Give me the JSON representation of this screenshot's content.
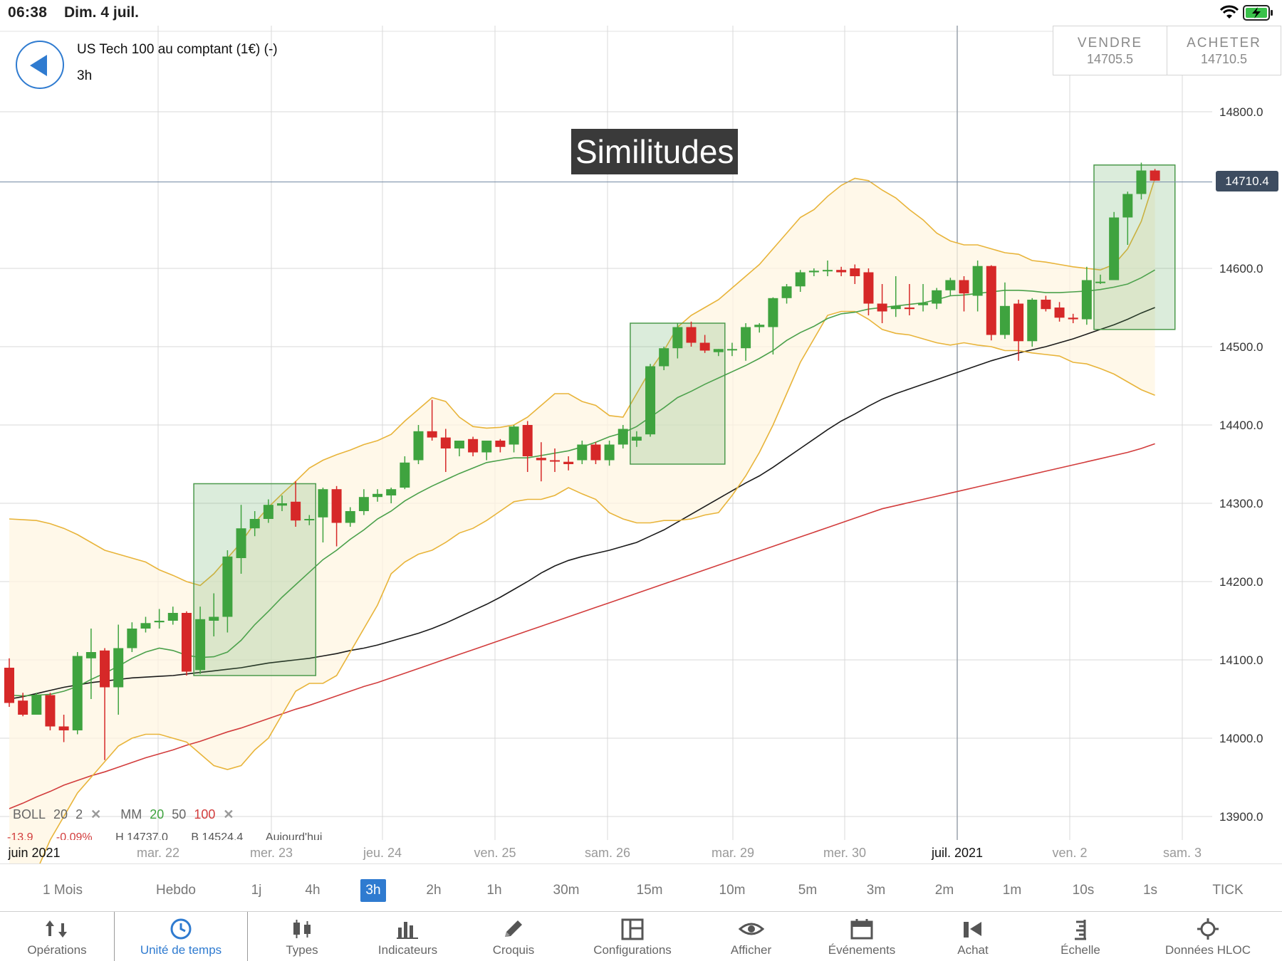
{
  "status_bar": {
    "time": "06:38",
    "date": "Dim. 4 juil.",
    "icons": [
      "wifi-icon",
      "battery-charging-icon"
    ]
  },
  "header": {
    "instrument": "US Tech 100 au comptant (1€) (-)",
    "timeframe": "3h",
    "sell": {
      "label": "VENDRE",
      "price": "14705.5"
    },
    "buy": {
      "label": "ACHETER",
      "price": "14710.5"
    }
  },
  "annotation": {
    "text": "Similitudes"
  },
  "current_price": "14710.4",
  "indicators": {
    "boll": {
      "name": "BOLL",
      "period": "20",
      "dev": "2"
    },
    "mm": {
      "name": "MM",
      "p1": "20",
      "p2": "50",
      "p3": "100"
    },
    "values": [
      "-13.9",
      "-0.09%",
      "H 14737.0",
      "B 14524.4",
      "Aujourd'hui"
    ]
  },
  "timeframes": [
    {
      "label": "1 Mois",
      "active": false
    },
    {
      "label": "Hebdo",
      "active": false
    },
    {
      "label": "1j",
      "active": false
    },
    {
      "label": "4h",
      "active": false
    },
    {
      "label": "3h",
      "active": true
    },
    {
      "label": "2h",
      "active": false
    },
    {
      "label": "1h",
      "active": false
    },
    {
      "label": "30m",
      "active": false
    },
    {
      "label": "15m",
      "active": false
    },
    {
      "label": "10m",
      "active": false
    },
    {
      "label": "5m",
      "active": false
    },
    {
      "label": "3m",
      "active": false
    },
    {
      "label": "2m",
      "active": false
    },
    {
      "label": "1m",
      "active": false
    },
    {
      "label": "10s",
      "active": false
    },
    {
      "label": "1s",
      "active": false
    },
    {
      "label": "TICK",
      "active": false
    }
  ],
  "toolbar": [
    {
      "label": "Opérations",
      "icon": "sort-arrows-icon",
      "active": false
    },
    {
      "label": "Unité de temps",
      "icon": "clock-icon",
      "active": true
    },
    {
      "label": "Types",
      "icon": "candlestick-icon",
      "active": false
    },
    {
      "label": "Indicateurs",
      "icon": "bar-chart-icon",
      "active": false
    },
    {
      "label": "Croquis",
      "icon": "pencil-icon",
      "active": false
    },
    {
      "label": "Configurations",
      "icon": "layout-icon",
      "active": false
    },
    {
      "label": "Afficher",
      "icon": "eye-icon",
      "active": false
    },
    {
      "label": "Événements",
      "icon": "calendar-icon",
      "active": false
    },
    {
      "label": "Achat",
      "icon": "buy-megaphone-icon",
      "active": false
    },
    {
      "label": "Échelle",
      "icon": "ruler-icon",
      "active": false
    },
    {
      "label": "Données HLOC",
      "icon": "crosshair-icon",
      "active": false
    }
  ],
  "colors": {
    "accent": "#2f7bd0",
    "bull": "#3fa33f",
    "bear": "#d62828",
    "bollinger": "#e8b43a",
    "ma20": "#4aa04a",
    "ma50": "#1a1a1a",
    "ma100": "#d23c3c"
  },
  "chart_data": {
    "type": "candlestick",
    "y_ticks": [
      "14800.0",
      "14600.0",
      "14500.0",
      "14400.0",
      "14300.0",
      "14200.0",
      "14100.0",
      "14000.0",
      "13900.0"
    ],
    "x_ticks": [
      "juin 2021",
      "mar. 22",
      "mer. 23",
      "jeu. 24",
      "ven. 25",
      "sam. 26",
      "mar. 29",
      "mer. 30",
      "juil. 2021",
      "ven. 2",
      "sam. 3"
    ],
    "x_ticks_bold": [
      "juin 2021",
      "juil. 2021"
    ],
    "candles": [
      [
        14090,
        14102,
        14040,
        14045
      ],
      [
        14048,
        14058,
        14028,
        14030
      ],
      [
        14030,
        14058,
        14030,
        14055
      ],
      [
        14055,
        14058,
        14010,
        14015
      ],
      [
        14015,
        14030,
        13995,
        14010
      ],
      [
        14010,
        14110,
        14005,
        14105
      ],
      [
        14102,
        14140,
        14050,
        14110
      ],
      [
        14112,
        14115,
        13972,
        14065
      ],
      [
        14065,
        14145,
        14030,
        14115
      ],
      [
        14115,
        14148,
        14110,
        14140
      ],
      [
        14140,
        14155,
        14135,
        14147
      ],
      [
        14148,
        14165,
        14140,
        14150
      ],
      [
        14150,
        14168,
        14145,
        14160
      ],
      [
        14160,
        14162,
        14080,
        14085
      ],
      [
        14087,
        14168,
        14082,
        14152
      ],
      [
        14150,
        14185,
        14130,
        14155
      ],
      [
        14155,
        14240,
        14135,
        14232
      ],
      [
        14230,
        14298,
        14210,
        14268
      ],
      [
        14268,
        14290,
        14258,
        14280
      ],
      [
        14280,
        14305,
        14275,
        14298
      ],
      [
        14297,
        14310,
        14290,
        14300
      ],
      [
        14302,
        14328,
        14270,
        14278
      ],
      [
        14280,
        14285,
        14272,
        14280
      ],
      [
        14282,
        14320,
        14250,
        14318
      ],
      [
        14318,
        14322,
        14245,
        14275
      ],
      [
        14275,
        14295,
        14270,
        14290
      ],
      [
        14290,
        14318,
        14285,
        14308
      ],
      [
        14308,
        14318,
        14302,
        14312
      ],
      [
        14310,
        14320,
        14300,
        14318
      ],
      [
        14320,
        14360,
        14318,
        14352
      ],
      [
        14355,
        14400,
        14350,
        14392
      ],
      [
        14392,
        14432,
        14380,
        14384
      ],
      [
        14384,
        14395,
        14340,
        14370
      ],
      [
        14370,
        14380,
        14360,
        14380
      ],
      [
        14382,
        14385,
        14360,
        14365
      ],
      [
        14365,
        14380,
        14355,
        14380
      ],
      [
        14380,
        14382,
        14365,
        14372
      ],
      [
        14375,
        14400,
        14365,
        14398
      ],
      [
        14400,
        14405,
        14340,
        14360
      ],
      [
        14358,
        14378,
        14328,
        14355
      ],
      [
        14355,
        14370,
        14340,
        14354
      ],
      [
        14353,
        14360,
        14342,
        14350
      ],
      [
        14355,
        14380,
        14350,
        14375
      ],
      [
        14375,
        14378,
        14350,
        14355
      ],
      [
        14355,
        14380,
        14348,
        14375
      ],
      [
        14375,
        14400,
        14370,
        14395
      ],
      [
        14380,
        14392,
        14372,
        14385
      ],
      [
        14388,
        14478,
        14385,
        14475
      ],
      [
        14475,
        14500,
        14470,
        14498
      ],
      [
        14498,
        14530,
        14485,
        14525
      ],
      [
        14525,
        14532,
        14500,
        14505
      ],
      [
        14505,
        14515,
        14492,
        14495
      ],
      [
        14493,
        14497,
        14488,
        14497
      ],
      [
        14497,
        14505,
        14488,
        14497
      ],
      [
        14498,
        14530,
        14482,
        14525
      ],
      [
        14525,
        14530,
        14518,
        14528
      ],
      [
        14525,
        14563,
        14490,
        14562
      ],
      [
        14562,
        14580,
        14555,
        14577
      ],
      [
        14577,
        14598,
        14570,
        14595
      ],
      [
        14595,
        14600,
        14590,
        14597
      ],
      [
        14597,
        14610,
        14590,
        14598
      ],
      [
        14598,
        14602,
        14590,
        14595
      ],
      [
        14600,
        14605,
        14580,
        14590
      ],
      [
        14595,
        14600,
        14540,
        14555
      ],
      [
        14555,
        14580,
        14530,
        14545
      ],
      [
        14548,
        14590,
        14538,
        14552
      ],
      [
        14550,
        14580,
        14540,
        14548
      ],
      [
        14553,
        14580,
        14545,
        14556
      ],
      [
        14555,
        14575,
        14548,
        14572
      ],
      [
        14572,
        14588,
        14565,
        14585
      ],
      [
        14585,
        14590,
        14545,
        14568
      ],
      [
        14565,
        14610,
        14545,
        14603
      ],
      [
        14603,
        14604,
        14508,
        14515
      ],
      [
        14515,
        14582,
        14510,
        14552
      ],
      [
        14555,
        14560,
        14482,
        14507
      ],
      [
        14507,
        14562,
        14500,
        14560
      ],
      [
        14560,
        14565,
        14545,
        14548
      ],
      [
        14550,
        14557,
        14532,
        14537
      ],
      [
        14537,
        14542,
        14530,
        14535
      ],
      [
        14535,
        14602,
        14528,
        14585
      ],
      [
        14583,
        14592,
        14580,
        14583
      ],
      [
        14585,
        14672,
        14585,
        14665
      ],
      [
        14665,
        14698,
        14630,
        14695
      ],
      [
        14695,
        14735,
        14688,
        14725
      ],
      [
        14725,
        14727,
        14712,
        14712
      ]
    ],
    "ma20": [
      14055,
      14054,
      14055,
      14056,
      14060,
      14066,
      14075,
      14083,
      14092,
      14102,
      14110,
      14115,
      14112,
      14106,
      14103,
      14104,
      14110,
      14125,
      14145,
      14162,
      14180,
      14196,
      14212,
      14228,
      14240,
      14254,
      14266,
      14280,
      14290,
      14303,
      14313,
      14322,
      14330,
      14338,
      14345,
      14352,
      14355,
      14358,
      14358,
      14361,
      14364,
      14367,
      14372,
      14378,
      14385,
      14390,
      14398,
      14410,
      14422,
      14435,
      14443,
      14452,
      14460,
      14468,
      14476,
      14485,
      14495,
      14508,
      14518,
      14526,
      14536,
      14542,
      14544,
      14548,
      14550,
      14552,
      14554,
      14556,
      14560,
      14565,
      14566,
      14568,
      14570,
      14572,
      14572,
      14571,
      14569,
      14569,
      14570,
      14571,
      14573,
      14576,
      14580,
      14588,
      14598
    ],
    "boll_upper": [
      14280,
      14279,
      14278,
      14274,
      14268,
      14260,
      14250,
      14240,
      14235,
      14230,
      14225,
      14215,
      14208,
      14200,
      14195,
      14210,
      14230,
      14250,
      14275,
      14295,
      14312,
      14328,
      14345,
      14355,
      14362,
      14368,
      14375,
      14380,
      14388,
      14405,
      14420,
      14435,
      14430,
      14410,
      14398,
      14396,
      14397,
      14400,
      14410,
      14425,
      14440,
      14440,
      14430,
      14425,
      14412,
      14410,
      14440,
      14470,
      14495,
      14525,
      14540,
      14550,
      14560,
      14575,
      14590,
      14605,
      14625,
      14645,
      14665,
      14675,
      14692,
      14706,
      14715,
      14712,
      14700,
      14690,
      14675,
      14662,
      14645,
      14635,
      14630,
      14630,
      14625,
      14620,
      14618,
      14610,
      14608,
      14605,
      14602,
      14600,
      14598,
      14605,
      14625,
      14660,
      14715
    ],
    "boll_lower": [
      13790,
      13800,
      13830,
      13870,
      13900,
      13930,
      13950,
      13970,
      13990,
      14000,
      14005,
      14005,
      14000,
      13995,
      13980,
      13965,
      13960,
      13965,
      13985,
      14000,
      14030,
      14060,
      14070,
      14070,
      14080,
      14110,
      14140,
      14170,
      14210,
      14225,
      14235,
      14240,
      14250,
      14262,
      14268,
      14278,
      14290,
      14302,
      14305,
      14305,
      14310,
      14320,
      14312,
      14305,
      14288,
      14280,
      14275,
      14275,
      14278,
      14278,
      14280,
      14285,
      14288,
      14310,
      14335,
      14365,
      14400,
      14440,
      14480,
      14510,
      14540,
      14545,
      14545,
      14535,
      14522,
      14517,
      14515,
      14510,
      14505,
      14502,
      14505,
      14502,
      14500,
      14495,
      14495,
      14492,
      14490,
      14488,
      14480,
      14478,
      14472,
      14465,
      14455,
      14445,
      14438
    ],
    "ma50": [
      14050,
      14053,
      14057,
      14061,
      14065,
      14068,
      14071,
      14073,
      14075,
      14077,
      14078,
      14079,
      14080,
      14082,
      14084,
      14086,
      14088,
      14090,
      14093,
      14096,
      14098,
      14100,
      14102,
      14105,
      14108,
      14112,
      14115,
      14119,
      14124,
      14129,
      14134,
      14140,
      14147,
      14155,
      14163,
      14171,
      14180,
      14190,
      14200,
      14211,
      14220,
      14227,
      14232,
      14236,
      14240,
      14245,
      14250,
      14258,
      14266,
      14276,
      14286,
      14296,
      14306,
      14316,
      14326,
      14335,
      14346,
      14358,
      14370,
      14382,
      14394,
      14405,
      14414,
      14424,
      14433,
      14440,
      14446,
      14452,
      14458,
      14464,
      14470,
      14476,
      14482,
      14487,
      14492,
      14496,
      14500,
      14505,
      14510,
      14516,
      14522,
      14528,
      14535,
      14543,
      14550
    ],
    "ma100": [
      13910,
      13917,
      13925,
      13932,
      13940,
      13946,
      13952,
      13957,
      13963,
      13969,
      13975,
      13980,
      13985,
      13991,
      13996,
      14002,
      14008,
      14013,
      14019,
      14025,
      14031,
      14037,
      14042,
      14048,
      14054,
      14060,
      14066,
      14071,
      14077,
      14083,
      14089,
      14095,
      14101,
      14107,
      14113,
      14119,
      14125,
      14131,
      14137,
      14143,
      14149,
      14155,
      14161,
      14167,
      14173,
      14179,
      14185,
      14191,
      14197,
      14203,
      14209,
      14215,
      14221,
      14227,
      14233,
      14239,
      14245,
      14251,
      14257,
      14263,
      14269,
      14275,
      14281,
      14287,
      14293,
      14297,
      14301,
      14305,
      14309,
      14313,
      14317,
      14321,
      14325,
      14329,
      14333,
      14337,
      14341,
      14345,
      14349,
      14353,
      14357,
      14361,
      14365,
      14370,
      14376
    ],
    "highlight_boxes": [
      {
        "from_index": 14,
        "to_index": 22,
        "low": 14080,
        "high": 14325
      },
      {
        "from_index": 46,
        "to_index": 52,
        "low": 14350,
        "high": 14530
      },
      {
        "from_index": 80,
        "to_index": 85,
        "low": 14522,
        "high": 14732
      }
    ],
    "current_price_line": 14710.4
  }
}
